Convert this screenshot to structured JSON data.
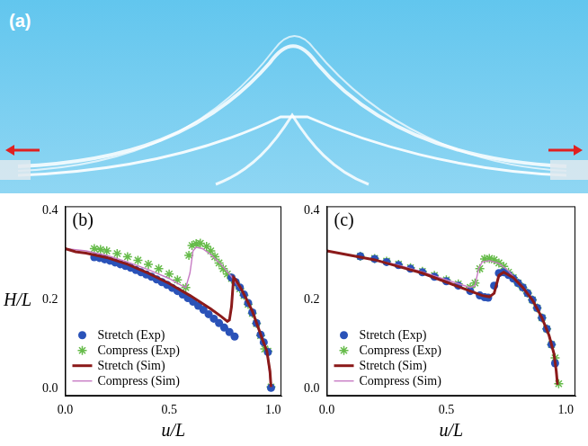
{
  "photo_panel": {
    "label": "(a)"
  },
  "chart_data": [
    {
      "type": "scatter",
      "panel": "(b)",
      "x_label": "u/L",
      "y_label": "H/L",
      "xlim": [
        0,
        1.04
      ],
      "ylim": [
        -0.015,
        0.41
      ],
      "xticks": [
        {
          "value": 0,
          "label": "0.0"
        },
        {
          "value": 0.5,
          "label": "0.5"
        },
        {
          "value": 1,
          "label": "1.0"
        }
      ],
      "yticks": [
        {
          "value": 0,
          "label": "0.0"
        },
        {
          "value": 0.2,
          "label": "0.2"
        },
        {
          "value": 0.4,
          "label": "0.4"
        }
      ],
      "grid": false,
      "legend": "lower left",
      "series": [
        {
          "name": "Stretch (Exp)",
          "type": "scatter",
          "marker": "circle",
          "color": "#2a52b8",
          "x": [
            0.14,
            0.165,
            0.19,
            0.215,
            0.24,
            0.265,
            0.29,
            0.315,
            0.34,
            0.365,
            0.39,
            0.415,
            0.44,
            0.465,
            0.49,
            0.515,
            0.54,
            0.565,
            0.59,
            0.615,
            0.64,
            0.665,
            0.69,
            0.715,
            0.74,
            0.765,
            0.79,
            0.815,
            0.8,
            0.82,
            0.84,
            0.86,
            0.88,
            0.9,
            0.92,
            0.94,
            0.955,
            0.975,
            0.99
          ],
          "values": [
            0.296,
            0.294,
            0.291,
            0.288,
            0.284,
            0.28,
            0.276,
            0.272,
            0.267,
            0.262,
            0.257,
            0.252,
            0.246,
            0.24,
            0.234,
            0.227,
            0.22,
            0.212,
            0.204,
            0.196,
            0.187,
            0.178,
            0.168,
            0.158,
            0.148,
            0.138,
            0.128,
            0.118,
            0.25,
            0.24,
            0.228,
            0.212,
            0.193,
            0.172,
            0.148,
            0.122,
            0.105,
            0.083,
            0.003
          ]
        },
        {
          "name": "Compress (Exp)",
          "type": "scatter",
          "marker": "star",
          "color": "#66bb4a",
          "x": [
            0.14,
            0.17,
            0.2,
            0.25,
            0.3,
            0.35,
            0.4,
            0.45,
            0.5,
            0.54,
            0.58,
            0.595,
            0.61,
            0.63,
            0.65,
            0.68,
            0.7,
            0.72,
            0.74,
            0.76,
            0.78,
            0.8,
            0.82,
            0.84,
            0.86,
            0.88,
            0.9,
            0.92,
            0.94,
            0.96,
            0.975,
            0.99
          ],
          "values": [
            0.315,
            0.313,
            0.31,
            0.304,
            0.297,
            0.289,
            0.28,
            0.27,
            0.258,
            0.245,
            0.228,
            0.3,
            0.322,
            0.326,
            0.327,
            0.32,
            0.31,
            0.297,
            0.283,
            0.27,
            0.258,
            0.248,
            0.238,
            0.225,
            0.21,
            0.19,
            0.17,
            0.147,
            0.12,
            0.09,
            0.085,
            0.005
          ]
        },
        {
          "name": "Stretch (Sim)",
          "type": "line",
          "line_style": "solid",
          "color": "#8b1a1a",
          "x": [
            0,
            0.05,
            0.1,
            0.2,
            0.3,
            0.4,
            0.5,
            0.6,
            0.7,
            0.75,
            0.78,
            0.79,
            0.8,
            0.81,
            0.82,
            0.85,
            0.9,
            0.95,
            0.97,
            0.985,
            0.99
          ],
          "values": [
            0.315,
            0.308,
            0.305,
            0.295,
            0.28,
            0.26,
            0.237,
            0.21,
            0.18,
            0.163,
            0.152,
            0.155,
            0.185,
            0.25,
            0.245,
            0.222,
            0.175,
            0.11,
            0.085,
            0.04,
            0.005
          ]
        },
        {
          "name": "Compress (Sim)",
          "type": "line",
          "line_style": "solid",
          "color": "#c77cc4",
          "x": [
            0,
            0.1,
            0.2,
            0.3,
            0.4,
            0.5,
            0.56,
            0.58,
            0.6,
            0.615,
            0.63,
            0.66,
            0.7,
            0.75,
            0.8,
            0.85,
            0.9,
            0.95,
            0.97,
            0.99
          ],
          "values": [
            0.315,
            0.31,
            0.3,
            0.285,
            0.268,
            0.248,
            0.232,
            0.228,
            0.26,
            0.31,
            0.318,
            0.315,
            0.302,
            0.28,
            0.252,
            0.22,
            0.175,
            0.11,
            0.085,
            0.005
          ]
        }
      ]
    },
    {
      "type": "scatter",
      "panel": "(c)",
      "x_label": "u/L",
      "xlim": [
        0,
        1.04
      ],
      "ylim": [
        -0.015,
        0.41
      ],
      "xticks": [
        {
          "value": 0,
          "label": "0.0"
        },
        {
          "value": 0.5,
          "label": "0.5"
        },
        {
          "value": 1,
          "label": "1.0"
        }
      ],
      "yticks": [
        {
          "value": 0,
          "label": "0.0"
        },
        {
          "value": 0.2,
          "label": "0.2"
        },
        {
          "value": 0.4,
          "label": "0.4"
        }
      ],
      "grid": false,
      "legend": "lower left",
      "series": [
        {
          "name": "Stretch (Exp)",
          "type": "scatter",
          "marker": "circle",
          "color": "#2a52b8",
          "x": [
            0.14,
            0.2,
            0.25,
            0.3,
            0.35,
            0.4,
            0.45,
            0.5,
            0.55,
            0.6,
            0.64,
            0.66,
            0.675,
            0.7,
            0.72,
            0.74,
            0.76,
            0.78,
            0.8,
            0.82,
            0.84,
            0.86,
            0.88,
            0.9,
            0.92,
            0.94,
            0.955
          ],
          "values": [
            0.298,
            0.292,
            0.285,
            0.278,
            0.27,
            0.262,
            0.252,
            0.242,
            0.232,
            0.22,
            0.21,
            0.206,
            0.205,
            0.232,
            0.26,
            0.262,
            0.256,
            0.248,
            0.238,
            0.228,
            0.215,
            0.2,
            0.182,
            0.16,
            0.135,
            0.1,
            0.058
          ]
        },
        {
          "name": "Compress (Exp)",
          "type": "scatter",
          "marker": "star",
          "color": "#66bb4a",
          "x": [
            0.14,
            0.2,
            0.25,
            0.3,
            0.35,
            0.4,
            0.45,
            0.5,
            0.55,
            0.6,
            0.62,
            0.64,
            0.66,
            0.68,
            0.7,
            0.72,
            0.74,
            0.76,
            0.78,
            0.8,
            0.82,
            0.84,
            0.86,
            0.88,
            0.9,
            0.92,
            0.94,
            0.955,
            0.97
          ],
          "values": [
            0.298,
            0.293,
            0.287,
            0.28,
            0.272,
            0.264,
            0.255,
            0.245,
            0.236,
            0.228,
            0.238,
            0.27,
            0.292,
            0.293,
            0.29,
            0.283,
            0.275,
            0.262,
            0.25,
            0.238,
            0.228,
            0.215,
            0.2,
            0.182,
            0.16,
            0.135,
            0.1,
            0.07,
            0.012
          ]
        },
        {
          "name": "Stretch (Sim)",
          "type": "line",
          "line_style": "solid",
          "color": "#8b1a1a",
          "x": [
            0,
            0.05,
            0.1,
            0.2,
            0.3,
            0.4,
            0.5,
            0.6,
            0.65,
            0.68,
            0.7,
            0.72,
            0.74,
            0.78,
            0.82,
            0.86,
            0.9,
            0.93,
            0.95,
            0.96,
            0.965
          ],
          "values": [
            0.31,
            0.305,
            0.3,
            0.29,
            0.275,
            0.26,
            0.24,
            0.22,
            0.21,
            0.207,
            0.215,
            0.255,
            0.262,
            0.25,
            0.228,
            0.2,
            0.16,
            0.12,
            0.08,
            0.04,
            0.01
          ]
        },
        {
          "name": "Compress (Sim)",
          "type": "line",
          "line_style": "solid",
          "color": "#c77cc4",
          "x": [
            0,
            0.1,
            0.2,
            0.3,
            0.4,
            0.5,
            0.6,
            0.62,
            0.635,
            0.65,
            0.68,
            0.72,
            0.76,
            0.8,
            0.85,
            0.9,
            0.93,
            0.95,
            0.965
          ],
          "values": [
            0.31,
            0.3,
            0.29,
            0.278,
            0.263,
            0.245,
            0.228,
            0.232,
            0.27,
            0.285,
            0.288,
            0.282,
            0.265,
            0.24,
            0.21,
            0.16,
            0.12,
            0.08,
            0.01
          ]
        }
      ]
    }
  ]
}
